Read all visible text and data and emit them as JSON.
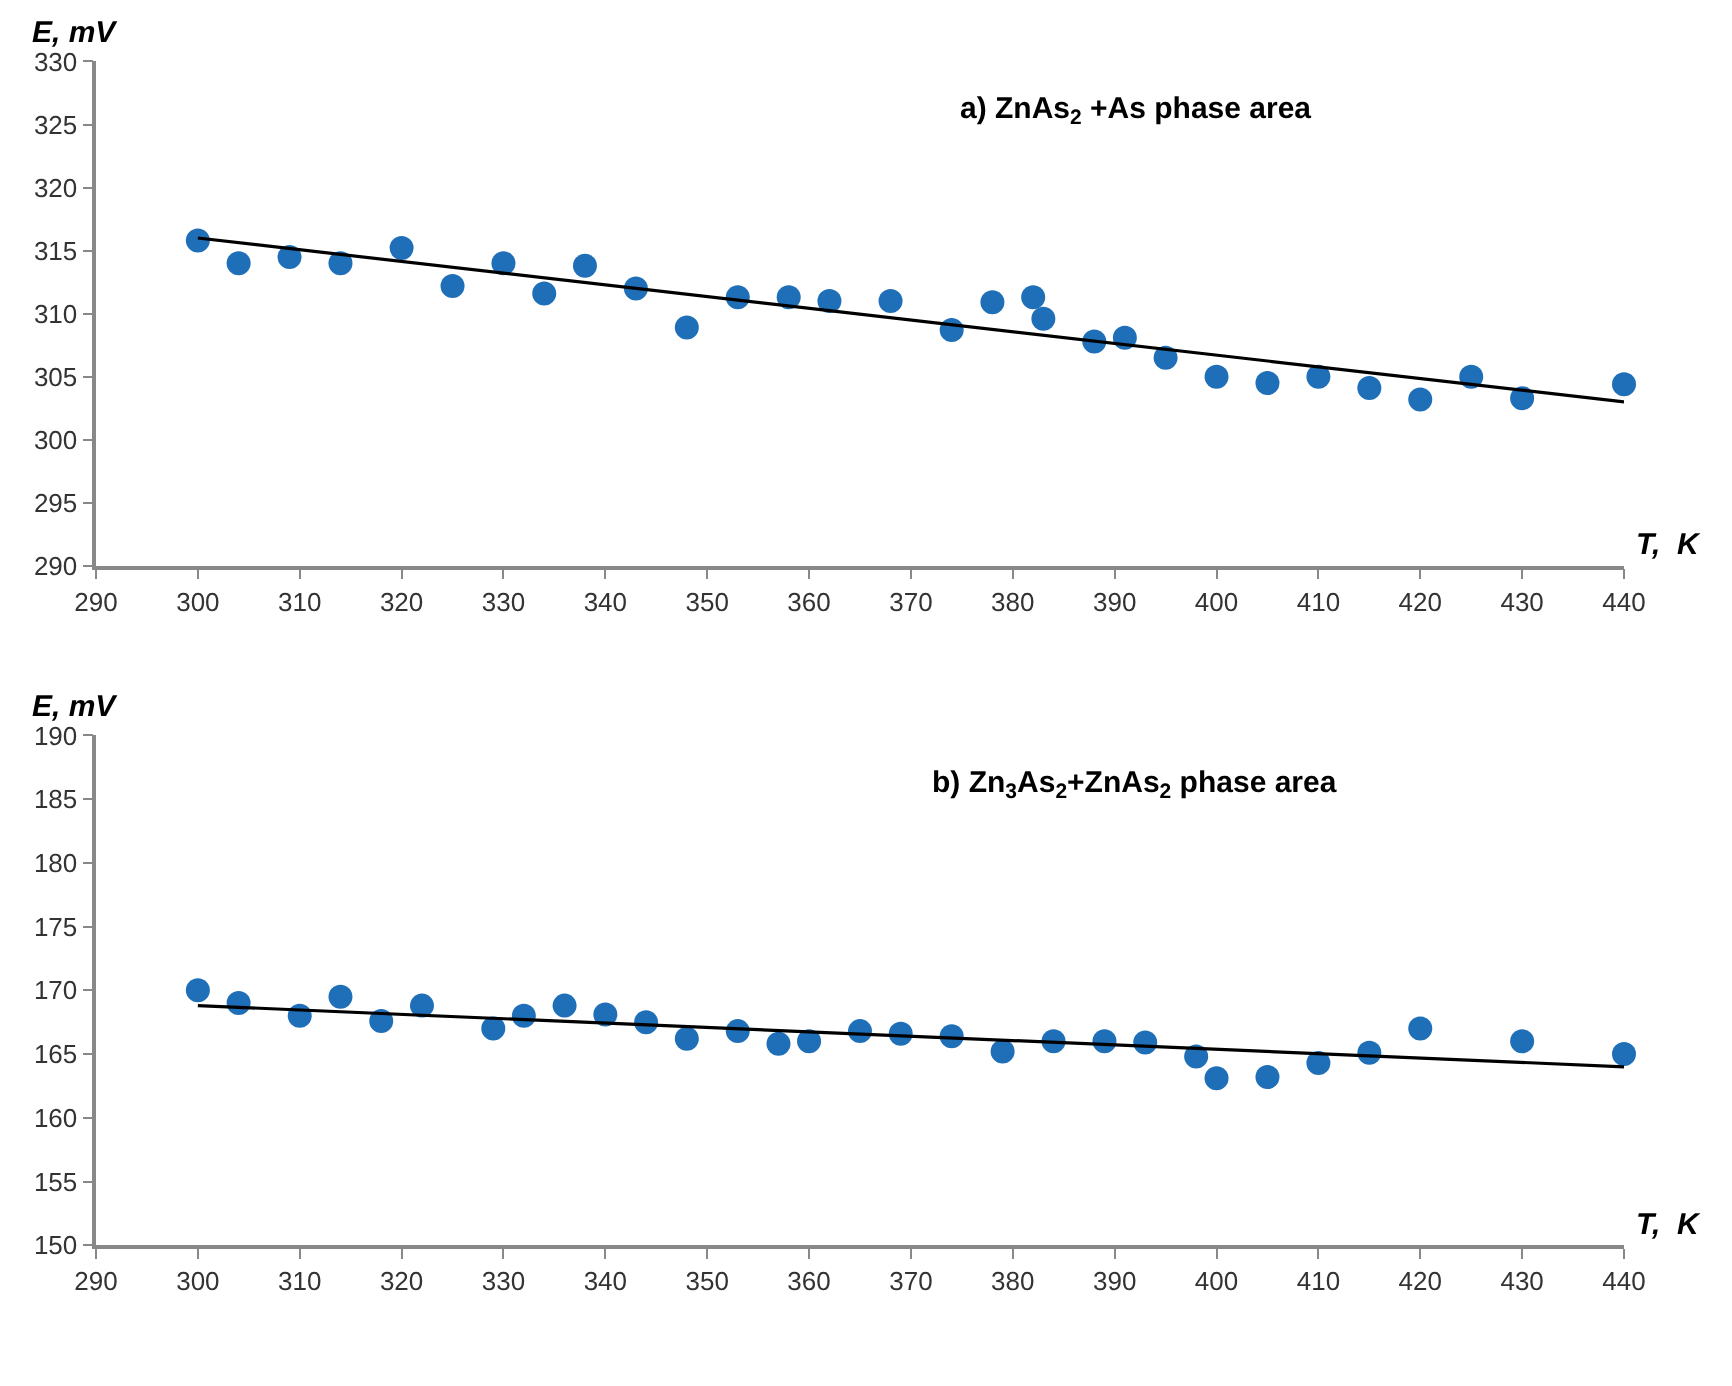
{
  "chart_data": [
    {
      "type": "scatter",
      "title": "a) ZnAs$_{2}$ +As phase area",
      "xlabel": "T,  K",
      "ylabel": "E, mV",
      "xlim": [
        290,
        440
      ],
      "xticks": [
        290,
        300,
        310,
        320,
        330,
        340,
        350,
        360,
        370,
        380,
        390,
        400,
        410,
        420,
        430,
        440
      ],
      "ylim": [
        290,
        330
      ],
      "yticks": [
        290,
        295,
        300,
        305,
        310,
        315,
        320,
        325,
        330
      ],
      "series": [
        {
          "marker": "circle",
          "color": "#1f6fb8",
          "x": [
            300,
            304,
            309,
            314,
            320,
            325,
            330,
            334,
            338,
            343,
            348,
            353,
            358,
            362,
            368,
            374,
            378,
            382,
            383,
            388,
            391,
            395,
            400,
            405,
            410,
            415,
            420,
            425,
            430,
            440
          ],
          "values": [
            315.8,
            314,
            314.5,
            314,
            315.2,
            312.2,
            314,
            311.6,
            313.8,
            312,
            308.9,
            311.3,
            311.3,
            311,
            311,
            308.7,
            310.9,
            311.3,
            309.6,
            307.8,
            308.1,
            306.5,
            305,
            304.5,
            305,
            304.1,
            303.2,
            305,
            303.3,
            304.4
          ]
        },
        {
          "type": "line",
          "color": "#000000",
          "x": [
            300,
            440
          ],
          "values": [
            316,
            303
          ]
        }
      ]
    },
    {
      "type": "scatter",
      "title": "b) Zn$_{3}$As$_{2}$+ZnAs$_{2}$ phase area",
      "xlabel": "T,  K",
      "ylabel": "E, mV",
      "xlim": [
        290,
        440
      ],
      "xticks": [
        290,
        300,
        310,
        320,
        330,
        340,
        350,
        360,
        370,
        380,
        390,
        400,
        410,
        420,
        430,
        440
      ],
      "ylim": [
        150,
        190
      ],
      "yticks": [
        150,
        155,
        160,
        165,
        170,
        175,
        180,
        185,
        190
      ],
      "series": [
        {
          "marker": "circle",
          "color": "#1f6fb8",
          "x": [
            300,
            304,
            310,
            314,
            318,
            322,
            329,
            332,
            336,
            340,
            344,
            348,
            353,
            357,
            360,
            365,
            369,
            374,
            379,
            384,
            389,
            393,
            398,
            400,
            405,
            410,
            415,
            420,
            430,
            440
          ],
          "values": [
            170,
            169,
            168,
            169.5,
            167.6,
            168.8,
            167,
            168,
            168.8,
            168.1,
            167.5,
            166.2,
            166.8,
            165.8,
            166,
            166.8,
            166.6,
            166.4,
            165.2,
            166,
            166,
            165.9,
            164.8,
            163.1,
            163.2,
            164.3,
            165.1,
            167,
            166,
            165
          ]
        },
        {
          "type": "line",
          "color": "#000000",
          "x": [
            300,
            440
          ],
          "values": [
            168.8,
            164
          ]
        }
      ]
    }
  ]
}
